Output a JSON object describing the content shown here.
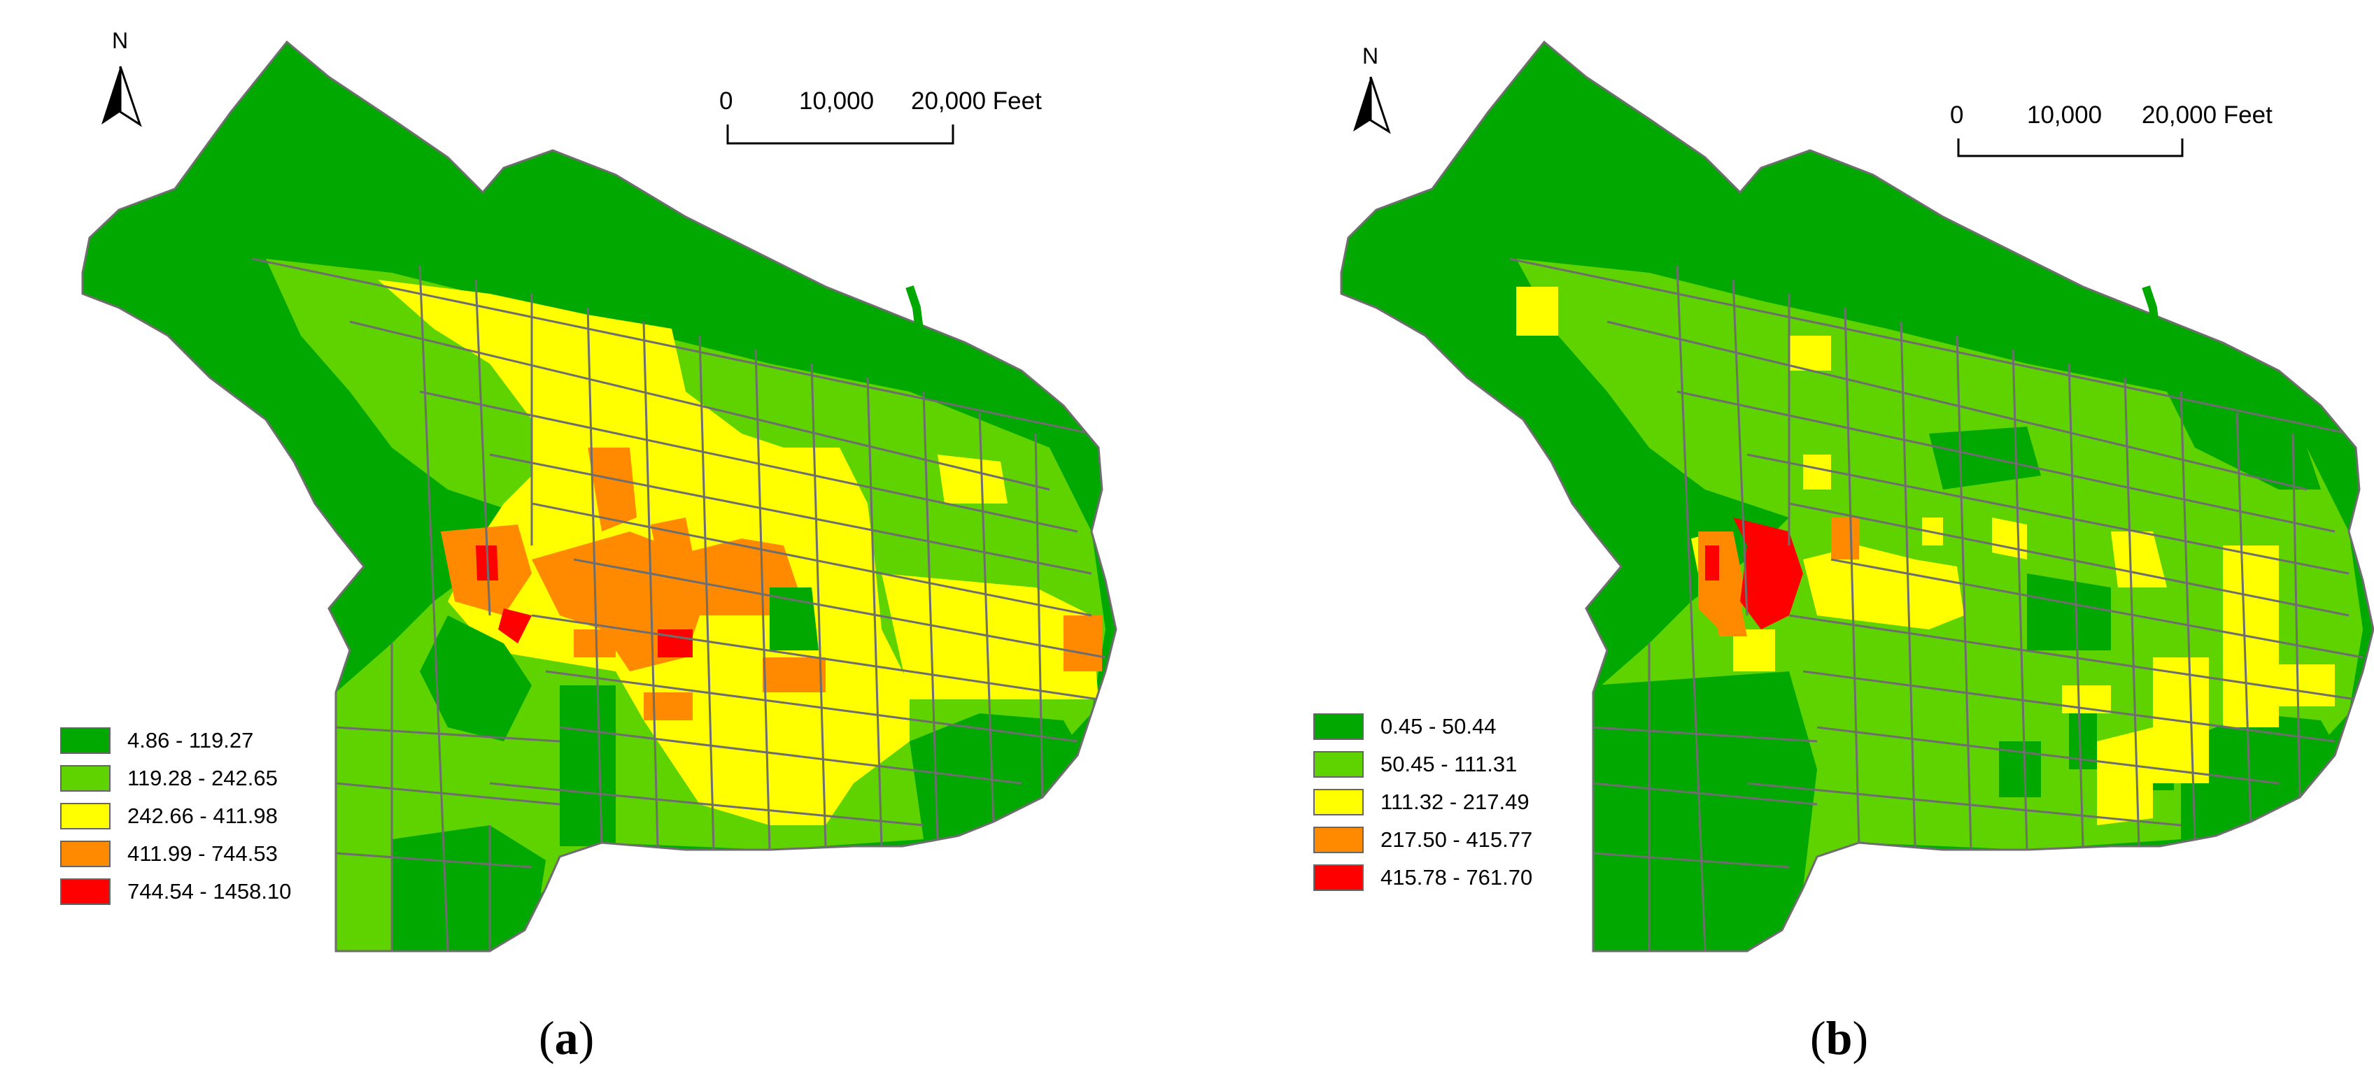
{
  "colors": {
    "class1": "#00a800",
    "class2": "#5fd300",
    "class3": "#ffff00",
    "class4": "#ff8a00",
    "class5": "#ff0000",
    "boundary": "#6e6e6e"
  },
  "panels": [
    {
      "label_open": "(",
      "label_letter": "a",
      "label_close": ")",
      "north": "N",
      "scale": {
        "t0": "0",
        "t1": "10,000",
        "t2": "20,000 Feet"
      },
      "legend": [
        {
          "label": "4.86 - 119.27",
          "color": "#00a800"
        },
        {
          "label": "119.28 - 242.65",
          "color": "#5fd300"
        },
        {
          "label": "242.66 - 411.98",
          "color": "#ffff00"
        },
        {
          "label": "411.99 - 744.53",
          "color": "#ff8a00"
        },
        {
          "label": "744.54 - 1458.10",
          "color": "#ff0000"
        }
      ]
    },
    {
      "label_open": "(",
      "label_letter": "b",
      "label_close": ")",
      "north": "N",
      "scale": {
        "t0": "0",
        "t1": "10,000",
        "t2": "20,000 Feet"
      },
      "legend": [
        {
          "label": "0.45 - 50.44",
          "color": "#00a800"
        },
        {
          "label": "50.45 - 111.31",
          "color": "#5fd300"
        },
        {
          "label": "111.32 - 217.49",
          "color": "#ffff00"
        },
        {
          "label": "217.50 - 415.77",
          "color": "#ff8a00"
        },
        {
          "label": "415.78 - 761.70",
          "color": "#ff0000"
        }
      ]
    }
  ]
}
